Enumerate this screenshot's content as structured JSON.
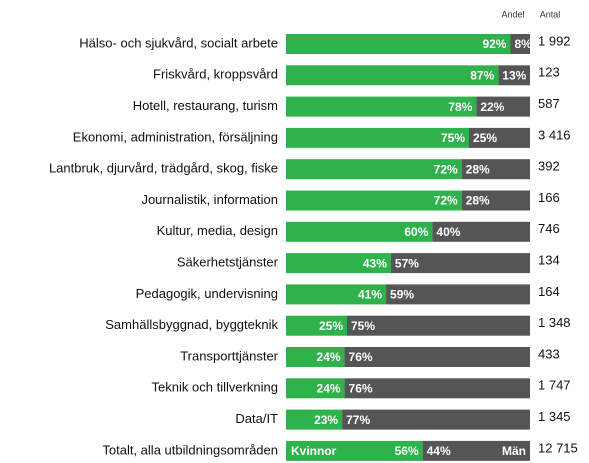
{
  "chart_data": {
    "type": "stacked-bar",
    "share_header": "Andel",
    "count_header": "Antal",
    "categories": [
      "Hälso- och sjukvård, socialt arbete",
      "Friskvård, kroppsvård",
      "Hotell, restaurang, turism",
      "Ekonomi, administration, försäljning",
      "Lantbruk, djurvård, trädgård, skog, fiske",
      "Journalistik, information",
      "Kultur, media, design",
      "Säkerhetstjänster",
      "Pedagogik, undervisning",
      "Samhällsbyggnad, byggteknik",
      "Transporttjänster",
      "Teknik och tillverkning",
      "Data/IT",
      "Totalt, alla utbildningsområden"
    ],
    "xlim": [
      0,
      100
    ],
    "series": [
      {
        "name": "Kvinnor",
        "color": "#2fb24b",
        "values": [
          92,
          87,
          78,
          75,
          72,
          72,
          60,
          43,
          41,
          25,
          24,
          24,
          23,
          56
        ],
        "value_labels": [
          "92%",
          "87%",
          "78%",
          "75%",
          "72%",
          "72%",
          "60%",
          "43%",
          "41%",
          "25%",
          "24%",
          "24%",
          "23%",
          "56%"
        ]
      },
      {
        "name": "Män",
        "color": "#555555",
        "values": [
          8,
          13,
          22,
          25,
          28,
          28,
          40,
          57,
          59,
          75,
          76,
          76,
          77,
          44
        ],
        "value_labels": [
          "8%",
          "13%",
          "22%",
          "25%",
          "28%",
          "28%",
          "40%",
          "57%",
          "59%",
          "75%",
          "76%",
          "76%",
          "77%",
          "44%"
        ]
      }
    ],
    "counts": [
      1992,
      123,
      587,
      3416,
      392,
      166,
      746,
      134,
      164,
      1348,
      433,
      1747,
      1345,
      12715
    ],
    "count_labels": [
      "1 992",
      "123",
      "587",
      "3 416",
      "392",
      "166",
      "746",
      "134",
      "164",
      "1 348",
      "433",
      "1 747",
      "1 345",
      "12 715"
    ]
  }
}
